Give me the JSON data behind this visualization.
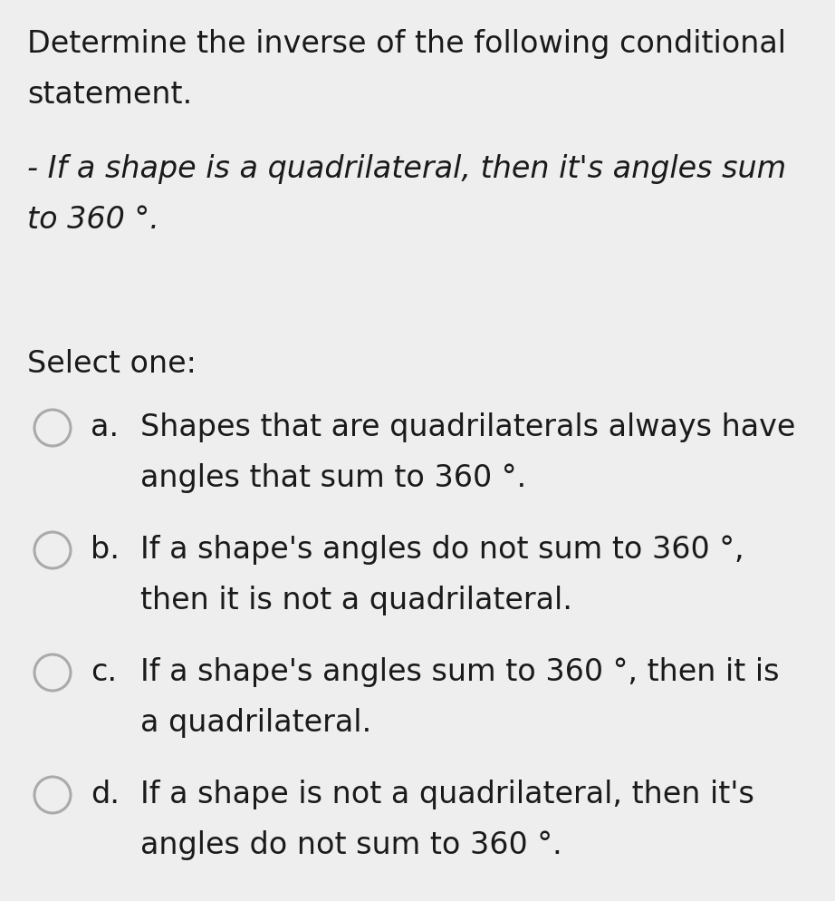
{
  "background_color": "#eeeeee",
  "title_line1": "Determine the inverse of the following conditional",
  "title_line2": "statement.",
  "italic_line1": "- If a shape is a quadrilateral, then it's angles sum",
  "italic_line2": "to 360 °.",
  "select_label": "Select one:",
  "options": [
    {
      "letter": "a.",
      "line1": "Shapes that are quadrilaterals always have",
      "line2": "angles that sum to 360 °."
    },
    {
      "letter": "b.",
      "line1": "If a shape's angles do not sum to 360 °,",
      "line2": "then it is not a quadrilateral."
    },
    {
      "letter": "c.",
      "line1": "If a shape's angles sum to 360 °, then it is",
      "line2": "a quadrilateral."
    },
    {
      "letter": "d.",
      "line1": "If a shape is not a quadrilateral, then it's",
      "line2": "angles do not sum to 360 °."
    }
  ],
  "text_color": "#1a1a1a",
  "circle_color": "#aaaaaa",
  "title_fontsize": 24,
  "italic_fontsize": 24,
  "select_fontsize": 24,
  "option_fontsize": 24
}
